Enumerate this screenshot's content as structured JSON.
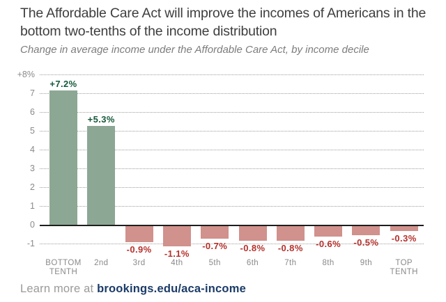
{
  "header": {
    "title": "The Affordable Care Act will improve the incomes of Americans in the bottom two-tenths of the income distribution",
    "subtitle": "Change in average income under the Affordable Care Act, by income decile"
  },
  "footer": {
    "prefix": "Learn more at ",
    "link": "brookings.edu/aca-income"
  },
  "colors": {
    "positive_bar": "#8ca794",
    "negative_bar": "#d1918c",
    "positive_label": "#14583a",
    "negative_label": "#b5302b",
    "axis_text": "#8a8a8a",
    "gridline": "#9c9c9c",
    "zero_line": "#1e1e1e"
  },
  "chart_data": {
    "type": "bar",
    "title": "The Affordable Care Act will improve the incomes of Americans in the bottom two-tenths of the income distribution",
    "subtitle": "Change in average income under the Affordable Care Act, by income decile",
    "categories": [
      "BOTTOM\nTENTH",
      "2nd",
      "3rd",
      "4th",
      "5th",
      "6th",
      "7th",
      "8th",
      "9th",
      "TOP\nTENTH"
    ],
    "values": [
      7.2,
      5.3,
      -0.9,
      -1.1,
      -0.7,
      -0.8,
      -0.8,
      -0.6,
      -0.5,
      -0.3
    ],
    "value_labels": [
      "+7.2%",
      "+5.3%",
      "-0.9%",
      "-1.1%",
      "-0.7%",
      "-0.8%",
      "-0.8%",
      "-0.6%",
      "-0.5%",
      "-0.3%"
    ],
    "y_ticks": [
      {
        "label": "+8%",
        "value": 8
      },
      {
        "label": "7",
        "value": 7
      },
      {
        "label": "6",
        "value": 6
      },
      {
        "label": "5",
        "value": 5
      },
      {
        "label": "4",
        "value": 4
      },
      {
        "label": "3",
        "value": 3
      },
      {
        "label": "2",
        "value": 2
      },
      {
        "label": "1",
        "value": 1
      },
      {
        "label": "0",
        "value": 0
      },
      {
        "label": "-1",
        "value": -1
      }
    ],
    "ylim": [
      -1,
      8
    ],
    "xlabel": "",
    "ylabel": "",
    "grid": "horizontal-dotted",
    "legend": "none",
    "unit": "percent change in average income"
  }
}
